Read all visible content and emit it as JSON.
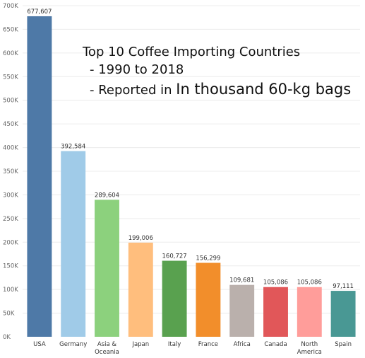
{
  "chart_data": {
    "type": "bar",
    "title_lines": [
      "Top 10 Coffee Importing Countries",
      "- 1990 to 2018",
      "- Reported in ",
      "In thousand 60-kg bags"
    ],
    "categories": [
      [
        "USA"
      ],
      [
        "Germany"
      ],
      [
        "Asia &",
        "Oceania"
      ],
      [
        "Japan"
      ],
      [
        "Italy"
      ],
      [
        "France"
      ],
      [
        "Africa"
      ],
      [
        "Canada"
      ],
      [
        "North",
        "America"
      ],
      [
        "Spain"
      ]
    ],
    "values": [
      677607,
      392584,
      289604,
      199006,
      160727,
      156299,
      109681,
      105086,
      105086,
      97111
    ],
    "value_labels": [
      "677,607",
      "392,584",
      "289,604",
      "199,006",
      "160,727",
      "156,299",
      "109,681",
      "105,086",
      "105,086",
      "97,111"
    ],
    "colors": [
      "#4e79a7",
      "#a0cbe8",
      "#8cd17d",
      "#ffbe7d",
      "#59a14f",
      "#f28e2b",
      "#bab0ac",
      "#e15759",
      "#ff9d9a",
      "#499894"
    ],
    "ylim": [
      0,
      700000
    ],
    "yticks": [
      0,
      50000,
      100000,
      150000,
      200000,
      250000,
      300000,
      350000,
      400000,
      450000,
      500000,
      550000,
      600000,
      650000,
      700000
    ],
    "ytick_labels": [
      "0K",
      "50K",
      "100K",
      "150K",
      "200K",
      "250K",
      "300K",
      "350K",
      "400K",
      "450K",
      "500K",
      "550K",
      "600K",
      "650K",
      "700K"
    ],
    "grid": true,
    "xlabel": "",
    "ylabel": ""
  }
}
